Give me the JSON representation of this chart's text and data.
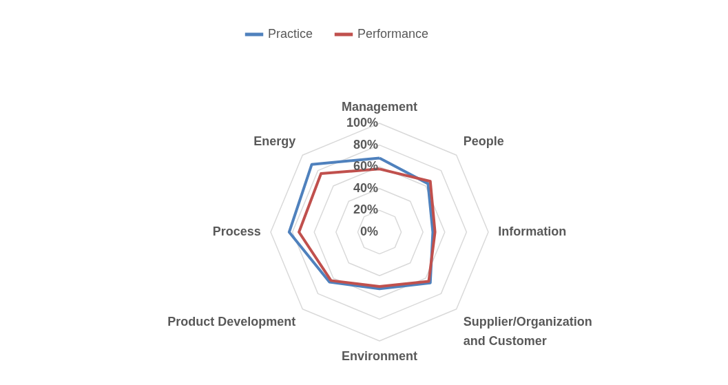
{
  "chart_data": {
    "type": "radar",
    "categories": [
      "Management",
      "People",
      "Information",
      "Supplier/Organization\nand Customer",
      "Environment",
      "Product Development",
      "Process",
      "Energy"
    ],
    "series": [
      {
        "name": "Practice",
        "color": "#4f81bd",
        "values": [
          68,
          63,
          49,
          66,
          52,
          65,
          83,
          88
        ]
      },
      {
        "name": "Performance",
        "color": "#c0504d",
        "values": [
          58,
          66,
          51,
          64,
          50,
          63,
          74,
          76
        ]
      }
    ],
    "ylim": [
      0,
      100
    ],
    "yticks": [
      {
        "value": 0,
        "label": "0%"
      },
      {
        "value": 20,
        "label": "20%"
      },
      {
        "value": 40,
        "label": "40%"
      },
      {
        "value": 60,
        "label": "60%"
      },
      {
        "value": 80,
        "label": "80%"
      },
      {
        "value": 100,
        "label": "100%"
      }
    ],
    "grid": true,
    "legend": "top"
  }
}
